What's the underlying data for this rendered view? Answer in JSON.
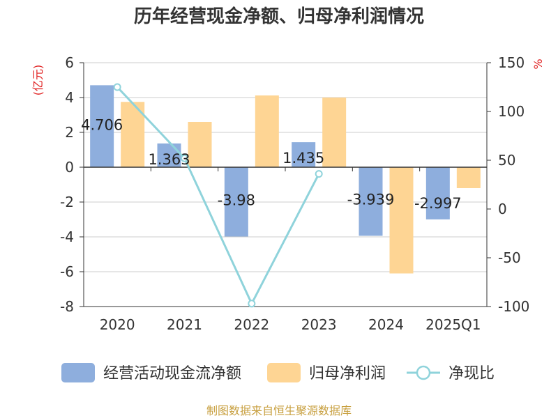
{
  "chart_data": {
    "type": "bar",
    "title": "历年经营现金净额、归母净利润情况",
    "categories": [
      "2020",
      "2021",
      "2022",
      "2023",
      "2024",
      "2025Q1"
    ],
    "left_unit": "(亿元)",
    "right_unit": "%",
    "ylim_left": [
      -8,
      6
    ],
    "yticks_left": [
      6,
      4,
      2,
      0,
      -2,
      -4,
      -6,
      -8
    ],
    "ylim_right": [
      -100,
      150
    ],
    "yticks_right": [
      150,
      100,
      50,
      0,
      -50,
      -100
    ],
    "grid": true,
    "legend_position": "bottom",
    "series": [
      {
        "name": "经营活动现金流净额",
        "kind": "bar",
        "axis": "left",
        "color": "#8eaedd",
        "values": [
          4.706,
          1.363,
          -3.98,
          1.435,
          -3.939,
          -2.997
        ],
        "labels": [
          "4.706",
          "1.363",
          "-3.98",
          "1.435",
          "-3.939",
          "-2.997"
        ]
      },
      {
        "name": "归母净利润",
        "kind": "bar",
        "axis": "left",
        "color": "#fed594",
        "values": [
          3.75,
          2.6,
          4.12,
          4.0,
          -6.1,
          -1.2
        ]
      },
      {
        "name": "净现比",
        "kind": "line",
        "axis": "right",
        "color": "#8fd3db",
        "values": [
          125,
          52,
          -97,
          36,
          null,
          null
        ]
      }
    ],
    "source": "制图数据来自恒生聚源数据库"
  }
}
